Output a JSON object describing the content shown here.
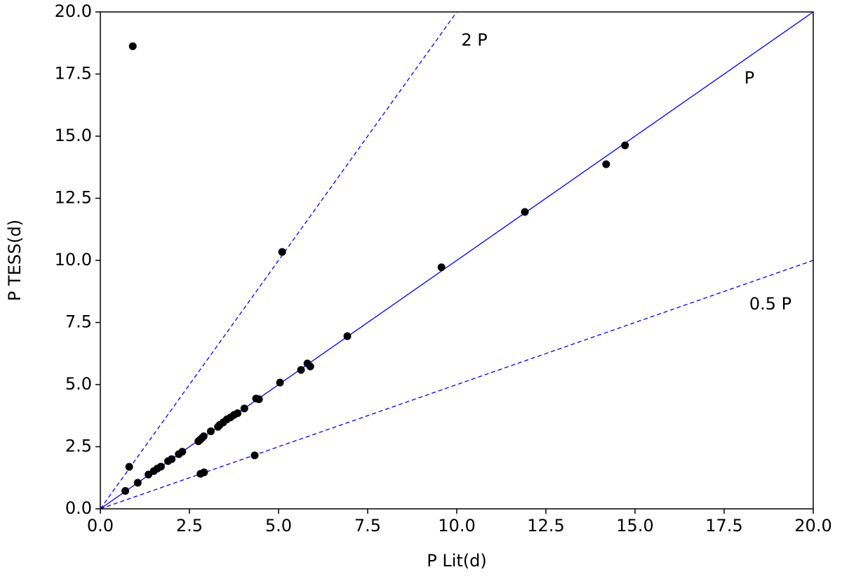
{
  "chart_data": {
    "type": "scatter",
    "x_label": "P Lit(d)",
    "y_label": "P TESS(d)",
    "color": "#000000",
    "x": [
      0.91,
      5.1,
      14.72,
      14.19,
      11.91,
      9.57,
      6.93,
      5.89,
      5.81,
      5.63,
      5.04,
      4.45,
      4.37,
      4.04,
      3.85,
      3.75,
      3.65,
      3.55,
      3.45,
      3.35,
      3.3,
      3.1,
      2.9,
      2.85,
      2.8,
      2.75,
      2.3,
      2.2,
      2.0,
      1.9,
      1.7,
      1.6,
      1.5,
      1.35,
      1.05,
      0.7,
      4.33,
      2.91,
      2.81,
      0.81
    ],
    "values": [
      18.62,
      10.34,
      14.63,
      13.87,
      11.95,
      9.72,
      6.95,
      5.73,
      5.85,
      5.59,
      5.08,
      4.41,
      4.44,
      4.04,
      3.85,
      3.78,
      3.68,
      3.6,
      3.48,
      3.38,
      3.3,
      3.12,
      2.92,
      2.85,
      2.78,
      2.72,
      2.3,
      2.2,
      2.0,
      1.92,
      1.7,
      1.62,
      1.52,
      1.38,
      1.05,
      0.72,
      2.15,
      1.47,
      1.41,
      1.69
    ],
    "lines": [
      {
        "label": "P",
        "x": [
          0,
          20
        ],
        "y": [
          0,
          20
        ],
        "color": "#0000ff",
        "dashed": false
      },
      {
        "label": "2 P",
        "x": [
          0,
          10
        ],
        "y": [
          0,
          20
        ],
        "color": "#0000ff",
        "dashed": true
      },
      {
        "label": "0.5 P",
        "x": [
          0,
          20
        ],
        "y": [
          0,
          10
        ],
        "color": "#0000ff",
        "dashed": true
      }
    ],
    "xlim": [
      0,
      20
    ],
    "ylim": [
      0,
      20
    ],
    "xticks": [
      {
        "value": 0,
        "label": "0.0"
      },
      {
        "value": 2.5,
        "label": "2.5"
      },
      {
        "value": 5,
        "label": "5.0"
      },
      {
        "value": 7.5,
        "label": "7.5"
      },
      {
        "value": 10,
        "label": "10.0"
      },
      {
        "value": 12.5,
        "label": "12.5"
      },
      {
        "value": 15,
        "label": "15.0"
      },
      {
        "value": 17.5,
        "label": "17.5"
      },
      {
        "value": 20,
        "label": "20.0"
      }
    ],
    "yticks": [
      {
        "value": 0,
        "label": "0.0"
      },
      {
        "value": 2.5,
        "label": "2.5"
      },
      {
        "value": 5,
        "label": "5.0"
      },
      {
        "value": 7.5,
        "label": "7.5"
      },
      {
        "value": 10,
        "label": "10.0"
      },
      {
        "value": 12.5,
        "label": "12.5"
      },
      {
        "value": 15,
        "label": "15.0"
      },
      {
        "value": 17.5,
        "label": "17.5"
      },
      {
        "value": 20,
        "label": "20.0"
      }
    ],
    "grid": false
  }
}
